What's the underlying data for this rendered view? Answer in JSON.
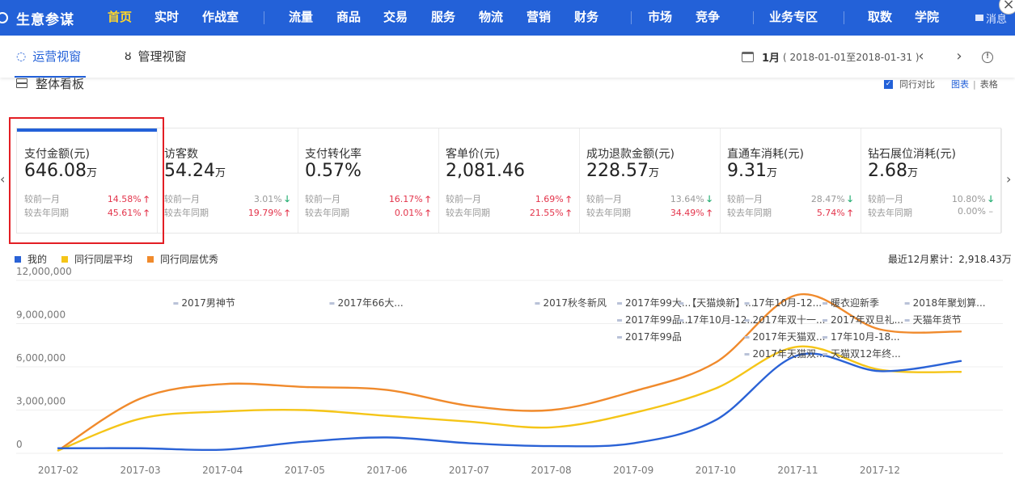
{
  "header": {
    "brand": "生意参谋",
    "nav": [
      {
        "label": "首页",
        "active": true
      },
      {
        "label": "实时"
      },
      {
        "label": "作战室"
      },
      {
        "label": "流量"
      },
      {
        "label": "商品"
      },
      {
        "label": "交易"
      },
      {
        "label": "服务"
      },
      {
        "label": "物流"
      },
      {
        "label": "营销"
      },
      {
        "label": "财务"
      },
      {
        "label": "市场"
      },
      {
        "label": "竞争"
      },
      {
        "label": "业务专区"
      },
      {
        "label": "取数"
      },
      {
        "label": "学院"
      }
    ],
    "message_label": "消息"
  },
  "subnav": {
    "tabs": [
      {
        "label": "运营视窗",
        "active": true,
        "icon": "activity-icon"
      },
      {
        "label": "管理视窗",
        "icon": "medal-icon"
      }
    ],
    "date_month": "1月",
    "date_range": "( 2018-01-01至2018-01-31 )"
  },
  "board": {
    "title": "整体看板",
    "compare_label": "同行对比",
    "chart_view": "图表",
    "table_view": "表格"
  },
  "cards": [
    {
      "label": "支付金额(元)",
      "value": "646.08",
      "unit": "万",
      "mom_label": "较前一月",
      "mom": "14.58%",
      "mom_dir": "up",
      "yoy_label": "较去年同期",
      "yoy": "45.61%",
      "yoy_dir": "up"
    },
    {
      "label": "访客数",
      "value": "54.24",
      "unit": "万",
      "mom_label": "较前一月",
      "mom": "3.01%",
      "mom_dir": "down",
      "yoy_label": "较去年同期",
      "yoy": "19.79%",
      "yoy_dir": "up"
    },
    {
      "label": "支付转化率",
      "value": "0.57%",
      "unit": "",
      "mom_label": "较前一月",
      "mom": "16.17%",
      "mom_dir": "up",
      "yoy_label": "较去年同期",
      "yoy": "0.01%",
      "yoy_dir": "up"
    },
    {
      "label": "客单价(元)",
      "value": "2,081.46",
      "unit": "",
      "mom_label": "较前一月",
      "mom": "1.69%",
      "mom_dir": "up",
      "yoy_label": "较去年同期",
      "yoy": "21.55%",
      "yoy_dir": "up"
    },
    {
      "label": "成功退款金额(元)",
      "value": "228.57",
      "unit": "万",
      "mom_label": "较前一月",
      "mom": "13.64%",
      "mom_dir": "down",
      "yoy_label": "较去年同期",
      "yoy": "34.49%",
      "yoy_dir": "up"
    },
    {
      "label": "直通车消耗(元)",
      "value": "9.31",
      "unit": "万",
      "mom_label": "较前一月",
      "mom": "28.47%",
      "mom_dir": "down",
      "yoy_label": "较去年同期",
      "yoy": "5.74%",
      "yoy_dir": "up"
    },
    {
      "label": "钻石展位消耗(元)",
      "value": "2.68",
      "unit": "万",
      "mom_label": "较前一月",
      "mom": "10.80%",
      "mom_dir": "down",
      "yoy_label": "较去年同期",
      "yoy": "0.00%",
      "yoy_dir": "flat"
    }
  ],
  "chart_summary": "最近12月累计：2,918.43万",
  "colors": {
    "mine": "#2a62d6",
    "peer_avg": "#f5c518",
    "peer_top": "#f08a2c",
    "up": "#e3344b",
    "down": "#1aaa6b"
  },
  "chart_data": {
    "type": "line",
    "x": [
      "2017-02",
      "2017-03",
      "2017-04",
      "2017-05",
      "2017-06",
      "2017-07",
      "2017-08",
      "2017-09",
      "2017-10",
      "2017-11",
      "2017-12"
    ],
    "yticks": [
      "0",
      "3,000,000",
      "6,000,000",
      "9,000,000",
      "12,000,000"
    ],
    "ylim": [
      0,
      12000000
    ],
    "series": [
      {
        "name": "我的",
        "color": "#2a62d6",
        "values": [
          350000,
          350000,
          250000,
          800000,
          1100000,
          700000,
          500000,
          700000,
          2300000,
          6800000,
          5700000
        ]
      },
      {
        "name": "同行同层平均",
        "color": "#f5c518",
        "values": [
          200000,
          2400000,
          2900000,
          3000000,
          2600000,
          2200000,
          1800000,
          2800000,
          4500000,
          7400000,
          5800000
        ]
      },
      {
        "name": "同行同层优秀",
        "color": "#f08a2c",
        "values": [
          200000,
          3800000,
          4800000,
          4600000,
          4400000,
          3300000,
          3000000,
          4300000,
          6300000,
          11000000,
          8600000
        ]
      }
    ],
    "tail_x": [
      4.5,
      4.7,
      4.55
    ],
    "annotations": [
      {
        "text": "2017男神节",
        "row": 0,
        "col": 1.5
      },
      {
        "text": "2017年66大...",
        "row": 0,
        "col": 3.4
      },
      {
        "text": "2017秋冬新风",
        "row": 0,
        "col": 5.9
      },
      {
        "text": "2017年99大...",
        "row": 0,
        "col": 6.9
      },
      {
        "text": "【天猫焕新】...",
        "row": 0,
        "col": 7.65
      },
      {
        "text": "17年10月-12...",
        "row": 0,
        "col": 8.45
      },
      {
        "text": "暖衣迎新季",
        "row": 0,
        "col": 9.4
      },
      {
        "text": "2018年聚划算...",
        "row": 0,
        "col": 10.4
      },
      {
        "text": "2017年99品...",
        "row": 1,
        "col": 6.9
      },
      {
        "text": "17年10月-12...",
        "row": 1,
        "col": 7.65
      },
      {
        "text": "2017年双十一...",
        "row": 1,
        "col": 8.45
      },
      {
        "text": "2017年双旦礼...",
        "row": 1,
        "col": 9.4
      },
      {
        "text": "天猫年货节",
        "row": 1,
        "col": 10.4
      },
      {
        "text": "2017年99品",
        "row": 2,
        "col": 6.9
      },
      {
        "text": "2017年天猫双...",
        "row": 2,
        "col": 8.45
      },
      {
        "text": "17年10月-18...",
        "row": 2,
        "col": 9.4
      },
      {
        "text": "2017年天猫双...",
        "row": 3,
        "col": 8.45
      },
      {
        "text": "天猫双12年终...",
        "row": 3,
        "col": 9.4
      }
    ]
  }
}
